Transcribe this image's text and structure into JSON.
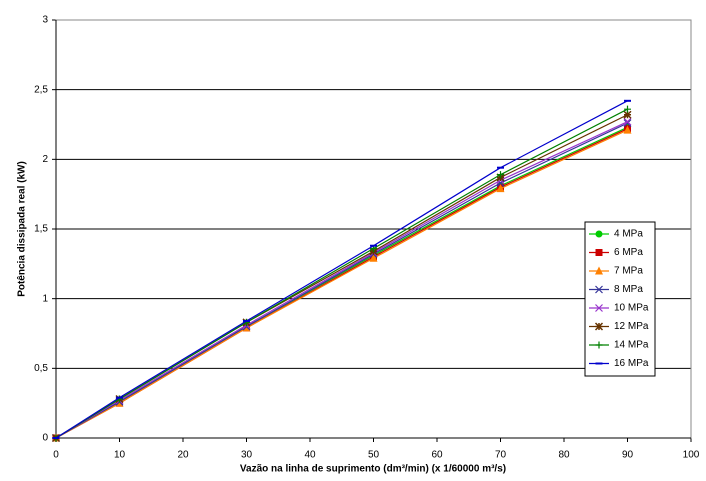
{
  "chart_data": {
    "type": "line",
    "x_label": "Vazão na linha de suprimento (dm³/min) (x 1/60000 m³/s)",
    "y_label": "Potência dissipada real (kW)",
    "x": [
      0,
      10,
      30,
      50,
      70,
      90
    ],
    "series": [
      {
        "name": "4 MPa",
        "color": "#00cc00",
        "marker": "circle",
        "values": [
          0,
          0.26,
          0.8,
          1.31,
          1.81,
          2.23
        ]
      },
      {
        "name": "6 MPa",
        "color": "#cc0000",
        "marker": "square",
        "values": [
          0,
          0.25,
          0.79,
          1.3,
          1.8,
          2.22
        ]
      },
      {
        "name": "7 MPa",
        "color": "#ff8000",
        "marker": "triangle",
        "values": [
          0,
          0.25,
          0.79,
          1.29,
          1.79,
          2.21
        ]
      },
      {
        "name": "8 MPa",
        "color": "#333399",
        "marker": "x",
        "values": [
          0,
          0.26,
          0.8,
          1.32,
          1.83,
          2.26
        ]
      },
      {
        "name": "10 MPa",
        "color": "#9933cc",
        "marker": "x",
        "values": [
          0,
          0.27,
          0.81,
          1.33,
          1.85,
          2.27
        ]
      },
      {
        "name": "12 MPa",
        "color": "#663300",
        "marker": "star",
        "values": [
          0,
          0.28,
          0.83,
          1.34,
          1.87,
          2.32
        ]
      },
      {
        "name": "14 MPa",
        "color": "#008000",
        "marker": "plus",
        "values": [
          0,
          0.28,
          0.83,
          1.36,
          1.89,
          2.36
        ]
      },
      {
        "name": "16 MPa",
        "color": "#0000cc",
        "marker": "dash",
        "values": [
          0,
          0.29,
          0.84,
          1.38,
          1.94,
          2.42
        ]
      }
    ],
    "xlim": [
      0,
      100
    ],
    "xticks": [
      0,
      10,
      20,
      30,
      40,
      50,
      60,
      70,
      80,
      90,
      100
    ],
    "ylim": [
      0,
      3
    ],
    "yticks": [
      0,
      {
        "value": 0.5,
        "label": "0,5"
      },
      1,
      {
        "value": 1.5,
        "label": "1,5"
      },
      2,
      {
        "value": 2.5,
        "label": "2,5"
      },
      3
    ],
    "grid": true,
    "legend": "right"
  }
}
